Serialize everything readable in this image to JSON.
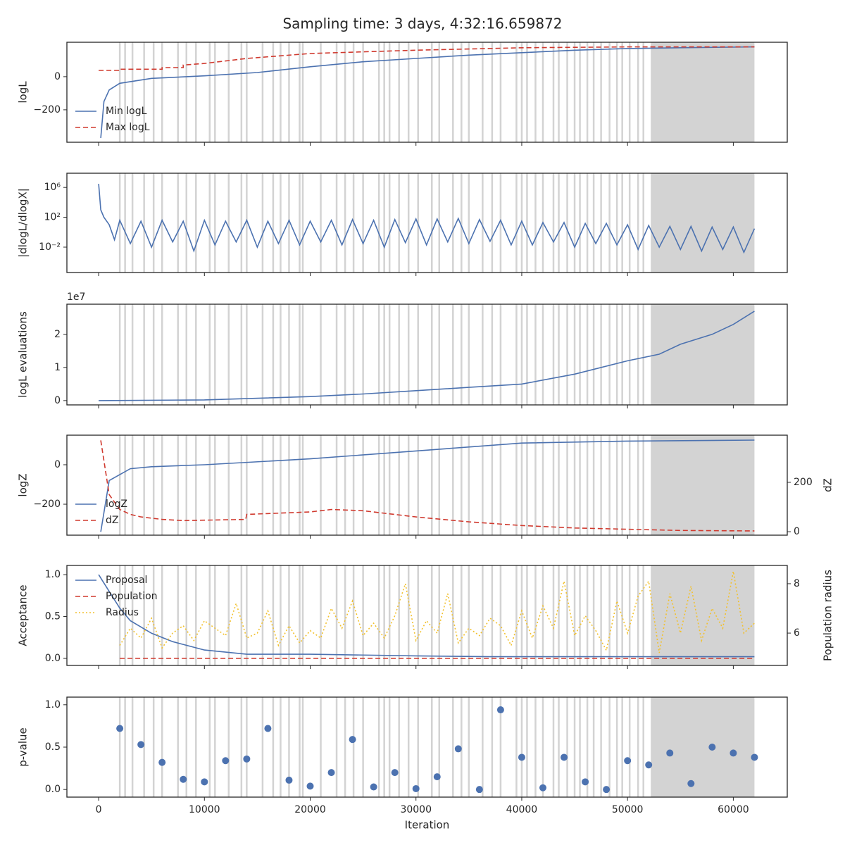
{
  "chart_data": [
    {
      "type": "line",
      "title": "Sampling time: 3 days, 4:32:16.659872",
      "ylabel": "logL",
      "xlim": [
        -3000,
        65100
      ],
      "xticks": [
        0,
        10000,
        20000,
        30000,
        40000,
        50000,
        60000
      ],
      "ylim": [
        -396,
        208
      ],
      "yticks": [
        {
          "value": -200,
          "label": "−200"
        },
        0
      ],
      "legend": "lower left",
      "vlines": [
        2000,
        2500,
        3200,
        4300,
        5200,
        6000,
        7500,
        8300,
        9200,
        10500,
        11000,
        12300,
        13500,
        14000,
        15500,
        16500,
        17200,
        18000,
        19000,
        19300,
        21000,
        22500,
        23300,
        24100,
        25000,
        26500,
        27000,
        27500,
        28400,
        29300,
        30200,
        31500,
        32200,
        33500,
        34300,
        35000,
        36300,
        37200,
        38000,
        39500,
        40000,
        40500,
        41300,
        42000,
        43000,
        43500,
        44300,
        45000,
        45500,
        46200,
        46800,
        47500,
        48300,
        49000,
        49500,
        50200,
        51000,
        51500
      ],
      "vline_color": "#d3d3d3",
      "shade": [
        52200,
        62000
      ],
      "series": [
        {
          "name": "Min logL",
          "color": "#4c72b0",
          "style": "solid",
          "x": [
            200,
            500,
            1000,
            2000,
            5000,
            10000,
            15000,
            20000,
            25000,
            30000,
            35000,
            40000,
            45000,
            50000,
            55000,
            62000
          ],
          "values": [
            -370,
            -150,
            -80,
            -40,
            -10,
            5,
            25,
            60,
            90,
            110,
            130,
            145,
            160,
            170,
            175,
            180
          ]
        },
        {
          "name": "Max logL",
          "color": "#d03a2f",
          "style": "dashed",
          "x": [
            0,
            2000,
            2000,
            6000,
            6000,
            8000,
            8000,
            10000,
            14000,
            20000,
            25000,
            30000,
            40000,
            50000,
            62000
          ],
          "values": [
            38,
            38,
            45,
            45,
            55,
            55,
            70,
            80,
            110,
            140,
            150,
            160,
            175,
            180,
            180
          ]
        }
      ]
    },
    {
      "type": "line",
      "ylabel": "|dlogL/dlogX|",
      "log": true,
      "xlim": [
        -3000,
        65100
      ],
      "xticks": [
        0,
        10000,
        20000,
        30000,
        40000,
        50000,
        60000
      ],
      "ylim": [
        4e-06,
        80000000
      ],
      "yticks": [
        {
          "value": 0.01,
          "label": "10⁻²"
        },
        {
          "value": 100,
          "label": "10²"
        },
        {
          "value": 1000000,
          "label": "10⁶"
        }
      ],
      "series": [
        {
          "name": "dlogL",
          "color": "#4c72b0",
          "style": "solid",
          "x": [
            0,
            200,
            500,
            1000,
            1500,
            2000,
            3000,
            4000,
            5000,
            6000,
            7000,
            8000,
            9000,
            10000,
            11000,
            12000,
            13000,
            14000,
            15000,
            16000,
            17000,
            18000,
            19000,
            20000,
            21000,
            22000,
            23000,
            24000,
            25000,
            26000,
            27000,
            28000,
            29000,
            30000,
            31000,
            32000,
            33000,
            34000,
            35000,
            36000,
            37000,
            38000,
            39000,
            40000,
            41000,
            42000,
            43000,
            44000,
            45000,
            46000,
            47000,
            48000,
            49000,
            50000,
            51000,
            52000,
            53000,
            54000,
            55000,
            56000,
            57000,
            58000,
            59000,
            60000,
            61000,
            62000
          ],
          "values": [
            3000000,
            1000,
            100,
            10,
            0.1,
            40,
            0.03,
            30,
            0.01,
            40,
            0.05,
            30,
            0.003,
            40,
            0.02,
            30,
            0.05,
            40,
            0.01,
            30,
            0.03,
            40,
            0.02,
            30,
            0.05,
            40,
            0.02,
            50,
            0.03,
            40,
            0.01,
            50,
            0.04,
            60,
            0.02,
            60,
            0.05,
            70,
            0.03,
            50,
            0.06,
            40,
            0.02,
            30,
            0.02,
            20,
            0.05,
            20,
            0.01,
            15,
            0.03,
            15,
            0.02,
            10,
            0.005,
            8,
            0.01,
            6,
            0.005,
            6,
            0.003,
            5,
            0.005,
            5,
            0.002,
            3
          ]
        }
      ]
    },
    {
      "type": "line",
      "ylabel": "logL evaluations",
      "offset_label": "1e7",
      "xlim": [
        -3000,
        65100
      ],
      "xticks": [
        0,
        10000,
        20000,
        30000,
        40000,
        50000,
        60000
      ],
      "ylim": [
        -0.13,
        2.91
      ],
      "yticks": [
        0,
        1,
        2
      ],
      "series": [
        {
          "name": "evaluations",
          "color": "#4c72b0",
          "style": "solid",
          "x": [
            0,
            10000,
            20000,
            25000,
            30000,
            35000,
            40000,
            45000,
            50000,
            53000,
            55000,
            58000,
            60000,
            62000
          ],
          "values": [
            0,
            0.02,
            0.12,
            0.2,
            0.3,
            0.4,
            0.5,
            0.8,
            1.2,
            1.4,
            1.7,
            2.0,
            2.3,
            2.7
          ]
        }
      ]
    },
    {
      "type": "line",
      "ylabel": "logZ",
      "y2label": "dZ",
      "xlim": [
        -3000,
        65100
      ],
      "xticks": [
        0,
        10000,
        20000,
        30000,
        40000,
        50000,
        60000
      ],
      "ylim": [
        -357,
        150
      ],
      "yticks": [
        {
          "value": -200,
          "label": "−200"
        },
        0
      ],
      "y2lim": [
        -14,
        391
      ],
      "y2ticks": [
        0,
        200
      ],
      "legend": "lower left",
      "series": [
        {
          "name": "logZ",
          "color": "#4c72b0",
          "style": "solid",
          "x": [
            200,
            1000,
            3000,
            5000,
            10000,
            20000,
            30000,
            40000,
            50000,
            62000
          ],
          "values": [
            -340,
            -80,
            -20,
            -10,
            0,
            30,
            70,
            110,
            120,
            125
          ]
        },
        {
          "name": "dZ",
          "color": "#d03a2f",
          "style": "dashed",
          "axis": "y2",
          "x": [
            200,
            1000,
            2000,
            3000,
            4000,
            6000,
            8000,
            13900,
            14000,
            20000,
            22000,
            25000,
            30000,
            35000,
            40000,
            45000,
            50000,
            55000,
            62000
          ],
          "values": [
            370,
            150,
            90,
            70,
            60,
            50,
            45,
            50,
            70,
            80,
            90,
            85,
            60,
            40,
            25,
            15,
            10,
            5,
            3
          ]
        }
      ]
    },
    {
      "type": "line",
      "ylabel": "Acceptance",
      "y2label": "Population radius",
      "xlim": [
        -3000,
        65100
      ],
      "xticks": [
        0,
        10000,
        20000,
        30000,
        40000,
        50000,
        60000
      ],
      "ylim": [
        -0.084,
        1.11
      ],
      "yticks": [
        {
          "value": 0,
          "label": "0.0"
        },
        0.5,
        {
          "value": 1,
          "label": "1.0"
        }
      ],
      "y2lim": [
        4.69,
        8.74
      ],
      "y2ticks": [
        6,
        8
      ],
      "legend": "upper left",
      "series": [
        {
          "name": "Proposal",
          "color": "#4c72b0",
          "style": "solid",
          "x": [
            0,
            1000,
            2000,
            3000,
            5000,
            7000,
            10000,
            14000,
            20000,
            30000,
            37000,
            40000,
            62000
          ],
          "values": [
            1.0,
            0.8,
            0.6,
            0.45,
            0.3,
            0.2,
            0.1,
            0.05,
            0.05,
            0.03,
            0.02,
            0.02,
            0.02
          ]
        },
        {
          "name": "Population",
          "color": "#d03a2f",
          "style": "dashed",
          "x": [
            2000,
            62000
          ],
          "values": [
            0,
            0
          ]
        },
        {
          "name": "Radius",
          "color": "#f2c12e",
          "style": "dotted",
          "axis": "y2",
          "x": [
            2000,
            3000,
            4000,
            5000,
            6000,
            7000,
            8000,
            9000,
            10000,
            11000,
            12000,
            13000,
            14000,
            15000,
            16000,
            17000,
            18000,
            19000,
            20000,
            21000,
            22000,
            23000,
            24000,
            25000,
            26000,
            27000,
            28000,
            29000,
            30000,
            31000,
            32000,
            33000,
            34000,
            35000,
            36000,
            37000,
            38000,
            39000,
            40000,
            41000,
            42000,
            43000,
            44000,
            45000,
            46000,
            47000,
            48000,
            49000,
            50000,
            51000,
            52000,
            53000,
            54000,
            55000,
            56000,
            57000,
            58000,
            59000,
            60000,
            61000,
            62000
          ],
          "values": [
            5.5,
            6.2,
            5.8,
            6.6,
            5.4,
            6.0,
            6.3,
            5.7,
            6.5,
            6.2,
            5.9,
            7.2,
            5.8,
            6.0,
            6.9,
            5.5,
            6.3,
            5.6,
            6.1,
            5.8,
            7.0,
            6.2,
            7.3,
            5.9,
            6.4,
            5.8,
            6.7,
            8.0,
            5.7,
            6.5,
            6.0,
            7.6,
            5.6,
            6.2,
            5.9,
            6.6,
            6.3,
            5.5,
            6.9,
            5.8,
            7.1,
            6.2,
            8.1,
            5.9,
            6.7,
            6.1,
            5.3,
            7.3,
            6.0,
            7.5,
            8.1,
            5.2,
            7.6,
            6.0,
            7.9,
            5.7,
            7.0,
            6.2,
            8.5,
            6.0,
            6.4
          ]
        }
      ]
    },
    {
      "type": "scatter",
      "ylabel": "p-value",
      "xlabel": "Iteration",
      "color": "#4c72b0",
      "xlim": [
        -3000,
        65100
      ],
      "xticks": [
        0,
        10000,
        20000,
        30000,
        40000,
        50000,
        60000
      ],
      "ylim": [
        -0.09,
        1.09
      ],
      "yticks": [
        {
          "value": 0,
          "label": "0.0"
        },
        0.5,
        {
          "value": 1,
          "label": "1.0"
        }
      ],
      "x": [
        2000,
        4000,
        6000,
        8000,
        10000,
        12000,
        14000,
        16000,
        18000,
        20000,
        22000,
        24000,
        26000,
        28000,
        30000,
        32000,
        34000,
        36000,
        38000,
        40000,
        42000,
        44000,
        46000,
        48000,
        50000,
        52000,
        54000,
        56000,
        58000,
        60000,
        62000
      ],
      "values": [
        0.72,
        0.53,
        0.32,
        0.12,
        0.09,
        0.34,
        0.36,
        0.72,
        0.11,
        0.04,
        0.2,
        0.59,
        0.03,
        0.2,
        0.01,
        0.15,
        0.48,
        0.0,
        0.94,
        0.38,
        0.02,
        0.38,
        0.09,
        0.0,
        0.34,
        0.29,
        0.43,
        0.07,
        0.5,
        0.43,
        0.38
      ]
    }
  ]
}
